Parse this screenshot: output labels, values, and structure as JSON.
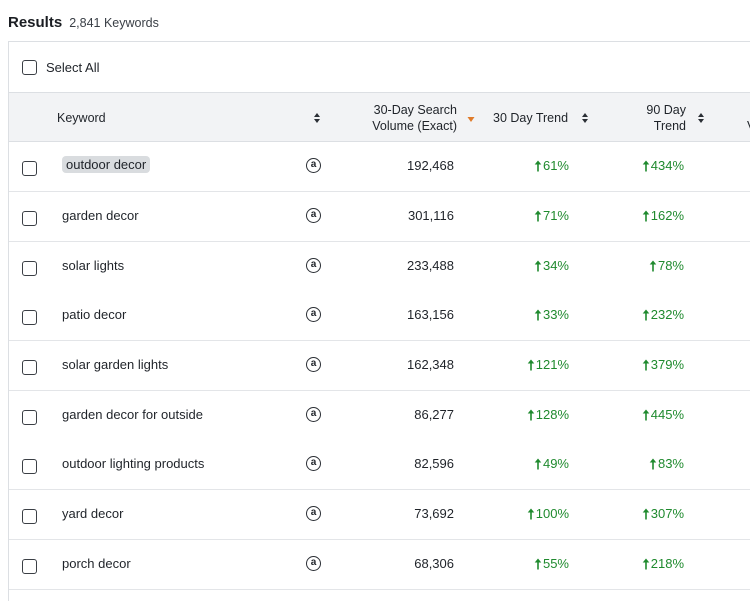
{
  "header": {
    "title": "Results",
    "count": "2,841 Keywords"
  },
  "select_all": {
    "label": "Select All"
  },
  "columns": {
    "keyword": "Keyword",
    "volume_line1": "30-Day Search",
    "volume_line2": "Volume (Exact)",
    "trend30": "30 Day Trend",
    "trend90_line1": "90 Day",
    "trend90_line2": "Trend",
    "next_col_fragment": "V"
  },
  "colors": {
    "trend_up": "#1f8a2e",
    "sort_active": "#e07b2a",
    "header_bg": "#f2f3f5"
  },
  "rows": [
    {
      "keyword": "outdoor decor",
      "volume": "192,468",
      "trend30": "61%",
      "trend90": "434%"
    },
    {
      "keyword": "garden decor",
      "volume": "301,116",
      "trend30": "71%",
      "trend90": "162%"
    },
    {
      "keyword": "solar lights",
      "volume": "233,488",
      "trend30": "34%",
      "trend90": "78%"
    },
    {
      "keyword": "patio decor",
      "volume": "163,156",
      "trend30": "33%",
      "trend90": "232%"
    },
    {
      "keyword": "solar garden lights",
      "volume": "162,348",
      "trend30": "121%",
      "trend90": "379%"
    },
    {
      "keyword": "garden decor for outside",
      "volume": "86,277",
      "trend30": "128%",
      "trend90": "445%"
    },
    {
      "keyword": "outdoor lighting products",
      "volume": "82,596",
      "trend30": "49%",
      "trend90": "83%"
    },
    {
      "keyword": "yard decor",
      "volume": "73,692",
      "trend30": "100%",
      "trend90": "307%"
    },
    {
      "keyword": "porch decor",
      "volume": "68,306",
      "trend30": "55%",
      "trend90": "218%"
    }
  ]
}
